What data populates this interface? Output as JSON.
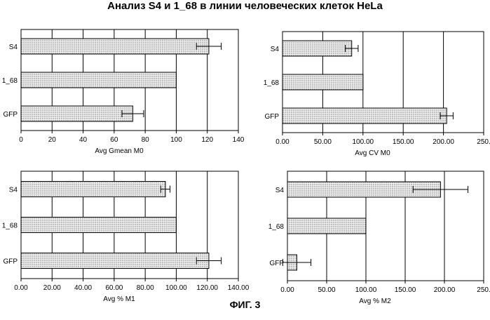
{
  "figure_title": "Анализ S4 и 1_68 в линии человеческих клеток HeLa",
  "caption": "ФИГ. 3",
  "chart_data": [
    {
      "type": "bar",
      "orientation": "horizontal",
      "categories": [
        "S4",
        "1_68",
        "GFP"
      ],
      "values": [
        121,
        100,
        72
      ],
      "errors": [
        8,
        0,
        7
      ],
      "xlabel": "Avg Gmean M0",
      "xlim": [
        0,
        140
      ],
      "ticks": [
        0,
        20,
        40,
        60,
        80,
        100,
        120,
        140
      ],
      "tick_labels": [
        "0",
        "20",
        "40",
        "60",
        "80",
        "100",
        "120",
        "140"
      ],
      "grid": true
    },
    {
      "type": "bar",
      "orientation": "horizontal",
      "categories": [
        "S4",
        "1_68",
        "GFP"
      ],
      "values": [
        86,
        100,
        204
      ],
      "errors": [
        8,
        0,
        8
      ],
      "xlabel": "Avg CV M0",
      "xlim": [
        0,
        250
      ],
      "ticks": [
        0,
        50,
        100,
        150,
        200,
        250
      ],
      "tick_labels": [
        "0.00",
        "50.00",
        "100.00",
        "150.00",
        "200.00",
        "250."
      ],
      "grid": true
    },
    {
      "type": "bar",
      "orientation": "horizontal",
      "categories": [
        "S4",
        "1_68",
        "GFP"
      ],
      "values": [
        93,
        100,
        121
      ],
      "errors": [
        3,
        0,
        8
      ],
      "xlabel": "Avg % M1",
      "xlim": [
        0,
        140
      ],
      "ticks": [
        0,
        20,
        40,
        60,
        80,
        100,
        120,
        140
      ],
      "tick_labels": [
        "0.00",
        "20.00",
        "40.00",
        "60.00",
        "80.00",
        "100.00",
        "120.00",
        "140.00"
      ],
      "grid": true
    },
    {
      "type": "bar",
      "orientation": "horizontal",
      "categories": [
        "S4",
        "1_68",
        "GFP"
      ],
      "values": [
        195,
        100,
        12
      ],
      "errors": [
        35,
        0,
        18
      ],
      "xlabel": "Avg % M2",
      "xlim": [
        0,
        250
      ],
      "ticks": [
        0,
        50,
        100,
        150,
        200,
        250
      ],
      "tick_labels": [
        "0.00",
        "50.00",
        "100.00",
        "150.00",
        "200.00",
        "250."
      ],
      "grid": true
    }
  ]
}
